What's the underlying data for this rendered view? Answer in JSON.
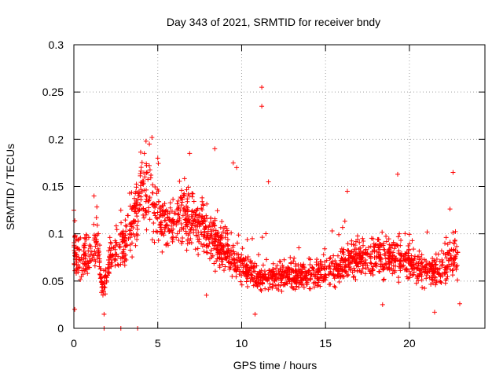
{
  "chart_data": {
    "type": "scatter",
    "title": "Day 343 of 2021, SRMTID for receiver bndy",
    "xlabel": "GPS time / hours",
    "ylabel": "SRMTID / TECUs",
    "xlim": [
      0,
      24.5
    ],
    "ylim": [
      0,
      0.3
    ],
    "xticks": [
      0,
      5,
      10,
      15,
      20
    ],
    "xtick_labels": [
      "0",
      "5",
      "10",
      "15",
      "20"
    ],
    "yticks": [
      0,
      0.05,
      0.1,
      0.15,
      0.2,
      0.25,
      0.3
    ],
    "ytick_labels": [
      "0",
      "0.05",
      "0.1",
      "0.15",
      "0.2",
      "0.25",
      "0.3"
    ],
    "grid": true,
    "marker": "+",
    "color": "#ff0000",
    "trend": [
      {
        "x": 0.0,
        "y": 0.08
      },
      {
        "x": 0.5,
        "y": 0.07
      },
      {
        "x": 1.0,
        "y": 0.075
      },
      {
        "x": 1.4,
        "y": 0.09
      },
      {
        "x": 1.7,
        "y": 0.04
      },
      {
        "x": 2.0,
        "y": 0.065
      },
      {
        "x": 2.5,
        "y": 0.08
      },
      {
        "x": 3.0,
        "y": 0.09
      },
      {
        "x": 3.5,
        "y": 0.11
      },
      {
        "x": 4.0,
        "y": 0.14
      },
      {
        "x": 4.5,
        "y": 0.145
      },
      {
        "x": 5.0,
        "y": 0.12
      },
      {
        "x": 5.5,
        "y": 0.11
      },
      {
        "x": 6.0,
        "y": 0.11
      },
      {
        "x": 6.5,
        "y": 0.12
      },
      {
        "x": 7.0,
        "y": 0.115
      },
      {
        "x": 7.5,
        "y": 0.11
      },
      {
        "x": 8.0,
        "y": 0.1
      },
      {
        "x": 8.5,
        "y": 0.09
      },
      {
        "x": 9.0,
        "y": 0.085
      },
      {
        "x": 9.5,
        "y": 0.075
      },
      {
        "x": 10.0,
        "y": 0.065
      },
      {
        "x": 11.0,
        "y": 0.055
      },
      {
        "x": 12.0,
        "y": 0.055
      },
      {
        "x": 13.0,
        "y": 0.055
      },
      {
        "x": 14.0,
        "y": 0.055
      },
      {
        "x": 15.0,
        "y": 0.06
      },
      {
        "x": 16.0,
        "y": 0.065
      },
      {
        "x": 17.0,
        "y": 0.075
      },
      {
        "x": 18.0,
        "y": 0.075
      },
      {
        "x": 19.0,
        "y": 0.075
      },
      {
        "x": 20.0,
        "y": 0.07
      },
      {
        "x": 21.0,
        "y": 0.06
      },
      {
        "x": 22.0,
        "y": 0.06
      },
      {
        "x": 22.5,
        "y": 0.075
      },
      {
        "x": 22.9,
        "y": 0.075
      }
    ],
    "peaks": [
      {
        "x": 4.3,
        "y": 0.198
      },
      {
        "x": 4.5,
        "y": 0.195
      },
      {
        "x": 4.2,
        "y": 0.185
      },
      {
        "x": 5.0,
        "y": 0.18
      },
      {
        "x": 6.9,
        "y": 0.185
      },
      {
        "x": 8.4,
        "y": 0.19
      },
      {
        "x": 9.5,
        "y": 0.175
      },
      {
        "x": 9.7,
        "y": 0.17
      },
      {
        "x": 11.2,
        "y": 0.255
      },
      {
        "x": 11.2,
        "y": 0.235
      },
      {
        "x": 11.6,
        "y": 0.155
      },
      {
        "x": 16.3,
        "y": 0.145
      },
      {
        "x": 19.3,
        "y": 0.163
      },
      {
        "x": 22.6,
        "y": 0.165
      },
      {
        "x": 1.2,
        "y": 0.14
      },
      {
        "x": 2.8,
        "y": 0.125
      },
      {
        "x": 0.0,
        "y": 0.125
      }
    ],
    "lows": [
      {
        "x": 0.05,
        "y": 0.02
      },
      {
        "x": 10.8,
        "y": 0.015
      },
      {
        "x": 21.5,
        "y": 0.017
      },
      {
        "x": 23.0,
        "y": 0.026
      },
      {
        "x": 18.4,
        "y": 0.025
      },
      {
        "x": 7.9,
        "y": 0.035
      },
      {
        "x": 1.8,
        "y": 0.015
      },
      {
        "x": 1.8,
        "y": 0.0
      },
      {
        "x": 2.8,
        "y": 0.0
      },
      {
        "x": 3.8,
        "y": 0.0
      }
    ],
    "data_range": [
      0,
      22.9
    ],
    "n_points": 2000
  }
}
